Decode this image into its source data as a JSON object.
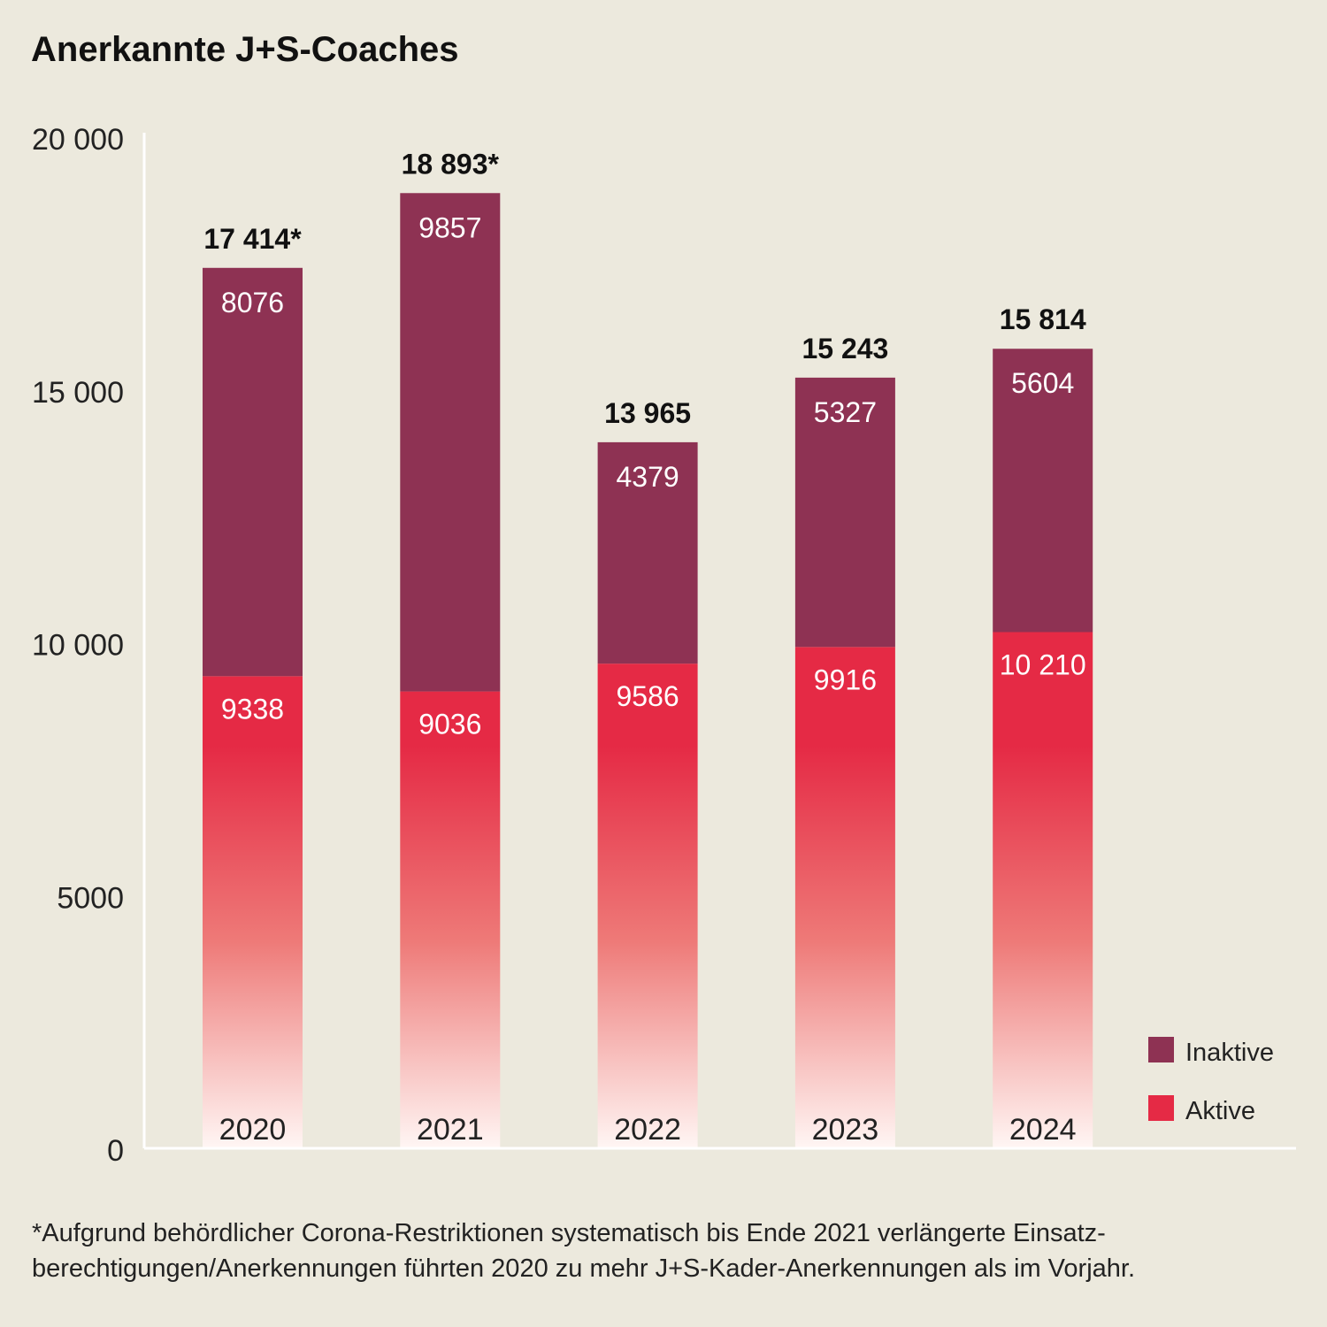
{
  "chart_data": {
    "type": "bar",
    "stacked": true,
    "title": "Anerkannte J+S-Coaches",
    "categories": [
      "2020",
      "2021",
      "2022",
      "2023",
      "2024"
    ],
    "series": [
      {
        "name": "Aktive",
        "values": [
          9338,
          9036,
          9586,
          9916,
          10210
        ],
        "labels": [
          "9338",
          "9036",
          "9586",
          "9916",
          "10 210"
        ],
        "color": "#E52A45"
      },
      {
        "name": "Inaktive",
        "values": [
          8076,
          9857,
          4379,
          5327,
          5604
        ],
        "labels": [
          "8076",
          "9857",
          "4379",
          "5327",
          "5604"
        ],
        "color": "#8E3253"
      }
    ],
    "totals": [
      17414,
      18893,
      13965,
      15243,
      15814
    ],
    "total_labels": [
      "17 414*",
      "18 893*",
      "13 965",
      "15 243",
      "15 814"
    ],
    "ylim": [
      0,
      20000
    ],
    "yticks": [
      0,
      5000,
      10000,
      15000,
      20000
    ],
    "ytick_labels": [
      "0",
      "5000",
      "10 000",
      "15 000",
      "20 000"
    ],
    "grid": false,
    "legend_placement": "bottom-right",
    "legend_order": [
      "Inaktive",
      "Aktive"
    ],
    "footnote": "*Aufgrund behördlicher Corona-Restriktionen systematisch bis Ende 2021 verlängerte Einsatz-berechtigungen/Anerkennungen führten 2020 zu mehr J+S-Kader-Anerkennungen als im Vorjahr."
  },
  "colors": {
    "background": "#ECE9DD",
    "axis": "#FFFFFF"
  }
}
